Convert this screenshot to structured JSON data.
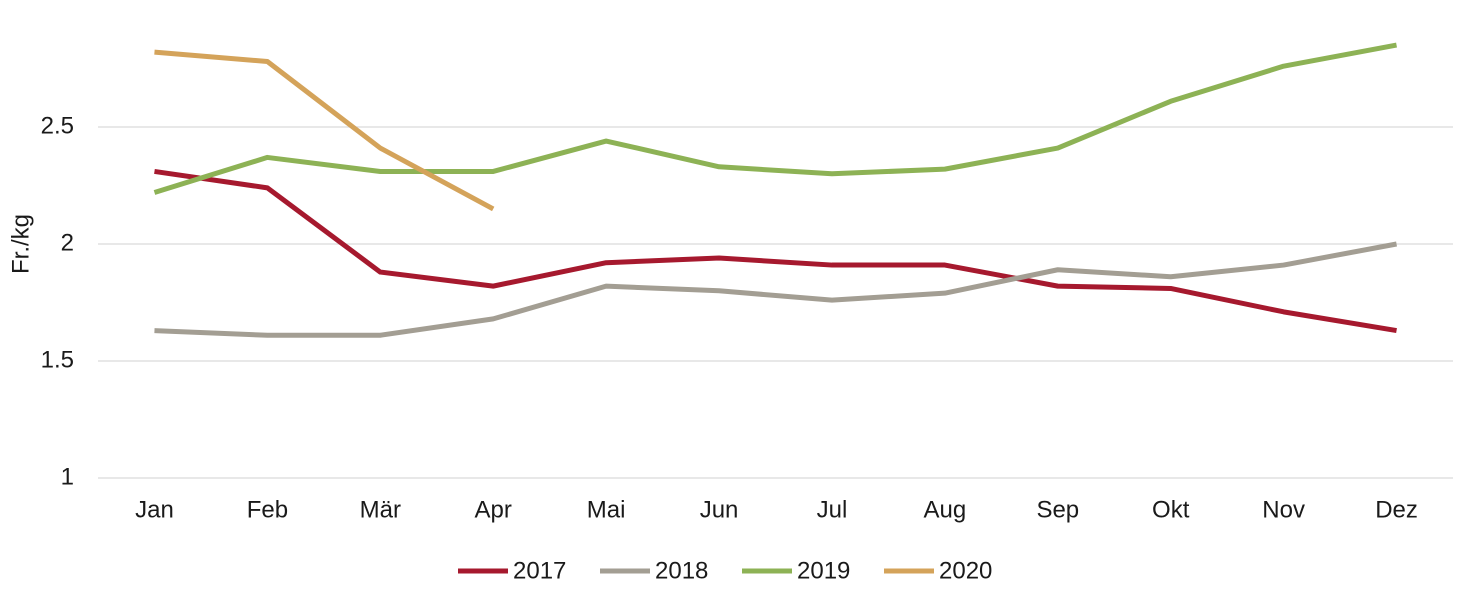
{
  "chart_data": {
    "type": "line",
    "y_label": "Fr./kg",
    "categories": [
      "Jan",
      "Feb",
      "Mär",
      "Apr",
      "Mai",
      "Jun",
      "Jul",
      "Aug",
      "Sep",
      "Okt",
      "Nov",
      "Dez"
    ],
    "series": [
      {
        "name": "2017",
        "color": "#a6192e",
        "values": [
          2.31,
          2.24,
          1.88,
          1.82,
          1.92,
          1.94,
          1.91,
          1.91,
          1.82,
          1.81,
          1.71,
          1.63
        ]
      },
      {
        "name": "2018",
        "color": "#a39e93",
        "values": [
          1.63,
          1.61,
          1.61,
          1.68,
          1.82,
          1.8,
          1.76,
          1.79,
          1.89,
          1.86,
          1.91,
          2.0
        ]
      },
      {
        "name": "2019",
        "color": "#8db255",
        "values": [
          2.22,
          2.37,
          2.31,
          2.31,
          2.44,
          2.33,
          2.3,
          2.32,
          2.41,
          2.61,
          2.76,
          2.85
        ]
      },
      {
        "name": "2020",
        "color": "#d4a35a",
        "values": [
          2.82,
          2.78,
          2.41,
          2.15,
          null,
          null,
          null,
          null,
          null,
          null,
          null,
          null
        ]
      }
    ],
    "ylim": [
      1,
      3
    ],
    "yticks": [
      1,
      1.5,
      2,
      2.5
    ],
    "grid": true,
    "legend": "bottom"
  }
}
